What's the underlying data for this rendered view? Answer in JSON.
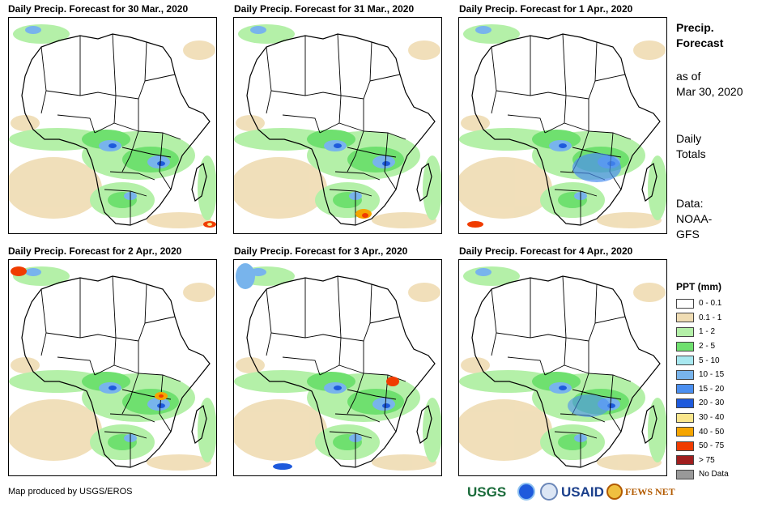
{
  "panels": [
    {
      "title": "Daily Precip. Forecast for 30 Mar., 2020"
    },
    {
      "title": "Daily Precip. Forecast for 31 Mar., 2020"
    },
    {
      "title": "Daily Precip. Forecast for 1 Apr., 2020"
    },
    {
      "title": "Daily Precip. Forecast for 2 Apr., 2020"
    },
    {
      "title": "Daily Precip. Forecast for 3 Apr., 2020"
    },
    {
      "title": "Daily Precip. Forecast for 4 Apr., 2020"
    }
  ],
  "sidebar": {
    "title_line1": "Precip.",
    "title_line2": "Forecast",
    "asof_line1": "as of",
    "asof_line2": "Mar 30, 2020",
    "totals_line1": "Daily",
    "totals_line2": "Totals",
    "data_line1": "Data:",
    "data_line2": "NOAA-",
    "data_line3": "GFS"
  },
  "legend": {
    "title": "PPT (mm)",
    "items": [
      {
        "label": "0 - 0.1",
        "color": "#ffffff"
      },
      {
        "label": "0.1 - 1",
        "color": "#efdcb3"
      },
      {
        "label": "1 - 2",
        "color": "#b4f0a8"
      },
      {
        "label": "2 - 5",
        "color": "#6fe06f"
      },
      {
        "label": "5 - 10",
        "color": "#a8e8f0"
      },
      {
        "label": "10 - 15",
        "color": "#78b4ec"
      },
      {
        "label": "15 - 20",
        "color": "#4b8ff0"
      },
      {
        "label": "20 - 30",
        "color": "#1e5adc"
      },
      {
        "label": "30 - 40",
        "color": "#fae68c"
      },
      {
        "label": "40 - 50",
        "color": "#f5a500"
      },
      {
        "label": "50 - 75",
        "color": "#f03c00"
      },
      {
        "label": "> 75",
        "color": "#a01e1e"
      },
      {
        "label": "No Data",
        "color": "#999999"
      }
    ]
  },
  "footer": {
    "credit": "Map produced by USGS/EROS",
    "logos": {
      "usgs": "USGS",
      "usaid": "USAID",
      "fewsnet": "FEWS NET"
    }
  }
}
